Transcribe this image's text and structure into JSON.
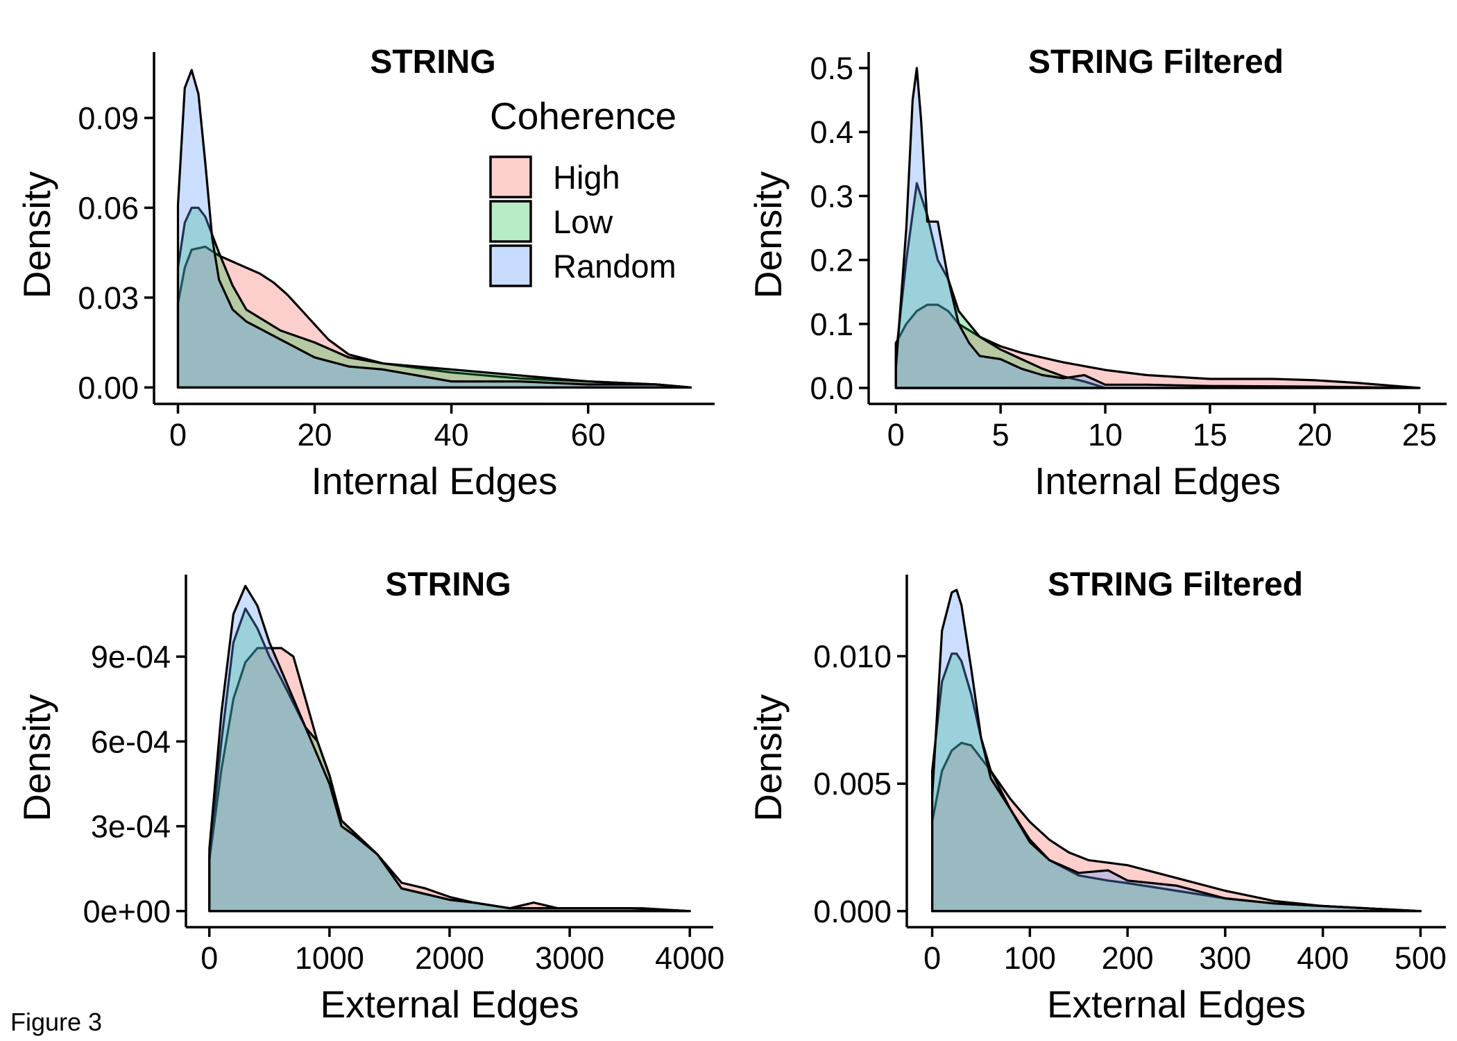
{
  "figure_label": "Figure 3",
  "legend": {
    "title": "Coherence",
    "items": [
      {
        "label": "High",
        "color": "#F8766D"
      },
      {
        "label": "Low",
        "color": "#00BA38"
      },
      {
        "label": "Random",
        "color": "#619CFF"
      }
    ]
  },
  "colors": {
    "High": "#F8766D",
    "Low": "#00BA38",
    "Random": "#619CFF",
    "outline": "#000000"
  },
  "chart_data": [
    {
      "type": "area",
      "title": "STRING",
      "xlabel": "Internal Edges",
      "ylabel": "Density",
      "xlim": [
        -3.5,
        78.5
      ],
      "ylim": [
        -0.0055,
        0.112
      ],
      "xticks": [
        0,
        20,
        40,
        60
      ],
      "xtick_labels": [
        "0",
        "20",
        "40",
        "60"
      ],
      "yticks": [
        0,
        0.03,
        0.06,
        0.09
      ],
      "ytick_labels": [
        "0.00",
        "0.03",
        "0.06",
        "0.09"
      ],
      "legend": "top-right",
      "series": [
        {
          "name": "High",
          "x": [
            0,
            1,
            2,
            4,
            6,
            8,
            10,
            12,
            14,
            16,
            18,
            20,
            22,
            25,
            30,
            40,
            50,
            60,
            70,
            75
          ],
          "y": [
            0.028,
            0.04,
            0.046,
            0.047,
            0.044,
            0.042,
            0.04,
            0.038,
            0.035,
            0.031,
            0.026,
            0.021,
            0.016,
            0.011,
            0.008,
            0.005,
            0.003,
            0.002,
            0.001,
            0
          ]
        },
        {
          "name": "Low",
          "x": [
            0,
            1,
            2,
            3,
            4,
            6,
            8,
            10,
            15,
            20,
            25,
            30,
            40,
            50,
            60,
            70,
            75
          ],
          "y": [
            0.04,
            0.055,
            0.06,
            0.06,
            0.057,
            0.045,
            0.034,
            0.026,
            0.019,
            0.015,
            0.01,
            0.008,
            0.006,
            0.004,
            0.002,
            0.001,
            0
          ]
        },
        {
          "name": "Random",
          "x": [
            0,
            1,
            2,
            3,
            4,
            5,
            6,
            8,
            10,
            15,
            20,
            25,
            30,
            35,
            40,
            50,
            60,
            70,
            75
          ],
          "y": [
            0.061,
            0.1,
            0.106,
            0.098,
            0.075,
            0.05,
            0.036,
            0.026,
            0.022,
            0.016,
            0.01,
            0.007,
            0.006,
            0.004,
            0.002,
            0.002,
            0.001,
            0.001,
            0
          ]
        }
      ]
    },
    {
      "type": "area",
      "title": "STRING Filtered",
      "xlabel": "Internal Edges",
      "ylabel": "Density",
      "xlim": [
        -1.3,
        26.3
      ],
      "ylim": [
        -0.025,
        0.525
      ],
      "xticks": [
        0,
        5,
        10,
        15,
        20,
        25
      ],
      "xtick_labels": [
        "0",
        "5",
        "10",
        "15",
        "20",
        "25"
      ],
      "yticks": [
        0,
        0.1,
        0.2,
        0.3,
        0.4,
        0.5
      ],
      "ytick_labels": [
        "0.0",
        "0.1",
        "0.2",
        "0.3",
        "0.4",
        "0.5"
      ],
      "series": [
        {
          "name": "High",
          "x": [
            0,
            0.5,
            1,
            1.5,
            2,
            2.5,
            3,
            4,
            5,
            6,
            8,
            10,
            12,
            15,
            18,
            20,
            22,
            25
          ],
          "y": [
            0.07,
            0.1,
            0.12,
            0.13,
            0.13,
            0.12,
            0.1,
            0.08,
            0.065,
            0.055,
            0.04,
            0.028,
            0.02,
            0.014,
            0.014,
            0.012,
            0.008,
            0
          ]
        },
        {
          "name": "Low",
          "x": [
            0,
            0.5,
            1,
            1.5,
            2,
            2.5,
            3,
            4,
            5,
            6,
            7,
            8,
            9,
            10
          ],
          "y": [
            0.05,
            0.2,
            0.32,
            0.27,
            0.2,
            0.17,
            0.12,
            0.08,
            0.06,
            0.045,
            0.03,
            0.018,
            0.01,
            0
          ]
        },
        {
          "name": "Random",
          "x": [
            0,
            0.5,
            0.8,
            1.0,
            1.2,
            1.5,
            2.0,
            2.5,
            3,
            3.5,
            4,
            5,
            6,
            7,
            8,
            9,
            10,
            12,
            15,
            20,
            25
          ],
          "y": [
            0.03,
            0.25,
            0.45,
            0.5,
            0.42,
            0.26,
            0.26,
            0.17,
            0.1,
            0.07,
            0.05,
            0.045,
            0.03,
            0.02,
            0.015,
            0.02,
            0.005,
            0.005,
            0.003,
            0.002,
            0
          ]
        }
      ]
    },
    {
      "type": "area",
      "title": "STRING",
      "xlabel": "External Edges",
      "ylabel": "Density",
      "xlim": [
        -195,
        4195
      ],
      "ylim": [
        -5.7e-05,
        0.00119
      ],
      "xticks": [
        0,
        1000,
        2000,
        3000,
        4000
      ],
      "xtick_labels": [
        "0",
        "1000",
        "2000",
        "3000",
        "4000"
      ],
      "yticks": [
        0,
        0.0003,
        0.0006,
        0.0009
      ],
      "ytick_labels": [
        "0e+00",
        "3e-04",
        "6e-04",
        "9e-04"
      ],
      "series": [
        {
          "name": "High",
          "x": [
            0,
            100,
            200,
            300,
            400,
            500,
            600,
            700,
            800,
            900,
            1000,
            1100,
            1200,
            1400,
            1600,
            1800,
            2000,
            2200,
            2500,
            2700,
            2900,
            3200,
            3600,
            4000
          ],
          "y": [
            0.00018,
            0.0005,
            0.00075,
            0.00088,
            0.00093,
            0.00093,
            0.00093,
            0.0009,
            0.00075,
            0.0006,
            0.00048,
            0.00032,
            0.00028,
            0.0002,
            0.0001,
            8e-05,
            5e-05,
            3e-05,
            1e-05,
            3e-05,
            1e-05,
            1e-05,
            1e-05,
            0
          ]
        },
        {
          "name": "Low",
          "x": [
            0,
            100,
            200,
            300,
            400,
            500,
            600,
            800,
            900,
            1000,
            1100,
            1200,
            1400,
            1600,
            1800,
            2000,
            2200,
            2500,
            3000,
            3500,
            4000
          ],
          "y": [
            0.0002,
            0.0006,
            0.00095,
            0.00107,
            0.001,
            0.0009,
            0.00082,
            0.00065,
            0.0006,
            0.00048,
            0.00032,
            0.00028,
            0.0002,
            8e-05,
            6e-05,
            4e-05,
            3e-05,
            1e-05,
            1e-05,
            1e-05,
            0
          ]
        },
        {
          "name": "Random",
          "x": [
            0,
            100,
            200,
            300,
            400,
            500,
            600,
            800,
            1000,
            1100,
            1200,
            1400,
            1600,
            1800,
            2000,
            2200,
            2500,
            3000,
            3500,
            4000
          ],
          "y": [
            0.00022,
            0.0007,
            0.00105,
            0.00115,
            0.00108,
            0.00095,
            0.00085,
            0.00065,
            0.00045,
            0.0003,
            0.00027,
            0.0002,
            8e-05,
            6e-05,
            4e-05,
            3e-05,
            1e-05,
            1e-05,
            1e-05,
            0
          ]
        }
      ]
    },
    {
      "type": "area",
      "title": "STRING Filtered",
      "xlabel": "External Edges",
      "ylabel": "Density",
      "xlim": [
        -26,
        526
      ],
      "ylim": [
        -0.00063,
        0.0132
      ],
      "xticks": [
        0,
        100,
        200,
        300,
        400,
        500
      ],
      "xtick_labels": [
        "0",
        "100",
        "200",
        "300",
        "400",
        "500"
      ],
      "yticks": [
        0,
        0.005,
        0.01
      ],
      "ytick_labels": [
        "0.000",
        "0.005",
        "0.010"
      ],
      "series": [
        {
          "name": "High",
          "x": [
            0,
            10,
            20,
            30,
            40,
            50,
            60,
            80,
            100,
            120,
            140,
            160,
            180,
            200,
            220,
            250,
            300,
            350,
            400,
            450,
            500
          ],
          "y": [
            0.0035,
            0.0055,
            0.0063,
            0.0066,
            0.0065,
            0.006,
            0.0055,
            0.0044,
            0.0035,
            0.0028,
            0.0023,
            0.002,
            0.0019,
            0.0018,
            0.0016,
            0.0013,
            0.0008,
            0.0004,
            0.0002,
            0.0001,
            0
          ]
        },
        {
          "name": "Low",
          "x": [
            0,
            10,
            20,
            25,
            30,
            40,
            50,
            60,
            80,
            100,
            120,
            150,
            180,
            200,
            250,
            300,
            350,
            400,
            450,
            500
          ],
          "y": [
            0.0055,
            0.009,
            0.0101,
            0.0101,
            0.0098,
            0.0085,
            0.0068,
            0.0055,
            0.004,
            0.0028,
            0.002,
            0.0014,
            0.0012,
            0.0011,
            0.0008,
            0.0005,
            0.0003,
            0.0002,
            0.0001,
            0
          ]
        },
        {
          "name": "Random",
          "x": [
            0,
            10,
            20,
            25,
            30,
            40,
            50,
            60,
            80,
            100,
            120,
            150,
            180,
            200,
            250,
            300,
            350,
            400,
            450,
            500
          ],
          "y": [
            0.0045,
            0.011,
            0.0125,
            0.0126,
            0.012,
            0.0095,
            0.0068,
            0.0052,
            0.004,
            0.0027,
            0.002,
            0.0015,
            0.0016,
            0.0012,
            0.001,
            0.0005,
            0.0003,
            0.0002,
            0.0001,
            0
          ]
        }
      ]
    }
  ]
}
